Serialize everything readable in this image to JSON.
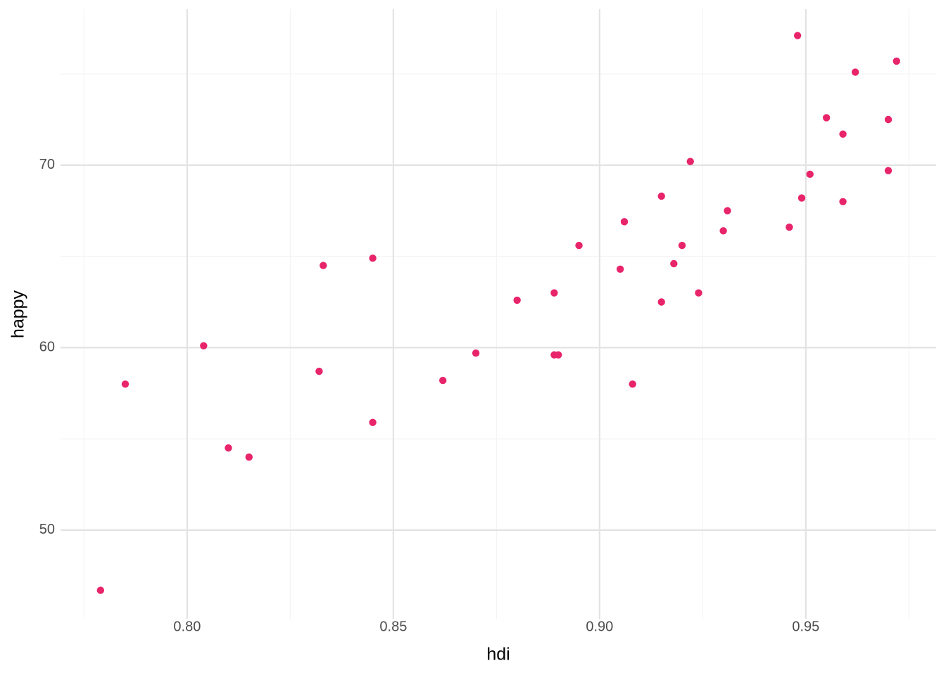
{
  "chart_data": {
    "type": "scatter",
    "x_label": "hdi",
    "y_label": "happy",
    "color": "#e8246a",
    "grid": true,
    "x": [
      0.779,
      0.785,
      0.804,
      0.81,
      0.815,
      0.832,
      0.833,
      0.845,
      0.845,
      0.862,
      0.87,
      0.88,
      0.889,
      0.889,
      0.89,
      0.895,
      0.905,
      0.906,
      0.908,
      0.915,
      0.915,
      0.918,
      0.92,
      0.922,
      0.924,
      0.93,
      0.931,
      0.946,
      0.948,
      0.949,
      0.951,
      0.955,
      0.959,
      0.959,
      0.962,
      0.97,
      0.97,
      0.972
    ],
    "values": [
      46.7,
      58.0,
      60.1,
      54.5,
      54.0,
      58.7,
      64.5,
      64.9,
      55.9,
      58.2,
      59.7,
      62.6,
      63.0,
      59.6,
      59.6,
      65.6,
      64.3,
      66.9,
      58.0,
      68.3,
      62.5,
      64.6,
      65.6,
      70.2,
      63.0,
      66.4,
      67.5,
      66.6,
      77.1,
      68.2,
      69.5,
      72.6,
      71.7,
      68.0,
      75.1,
      72.5,
      69.7,
      75.7
    ],
    "xlim": [
      0.7693,
      0.9816
    ],
    "ylim": [
      45.14,
      78.55
    ],
    "xticks": [
      {
        "value": 0.8,
        "label": "0.80"
      },
      0.85,
      {
        "value": 0.9,
        "label": "0.90"
      },
      0.95
    ],
    "yticks": [
      50,
      60,
      70
    ],
    "x_minor_ticks": [
      0.775,
      0.825,
      0.875,
      0.925,
      0.975
    ],
    "y_minor_ticks": [
      55,
      65,
      75
    ]
  }
}
